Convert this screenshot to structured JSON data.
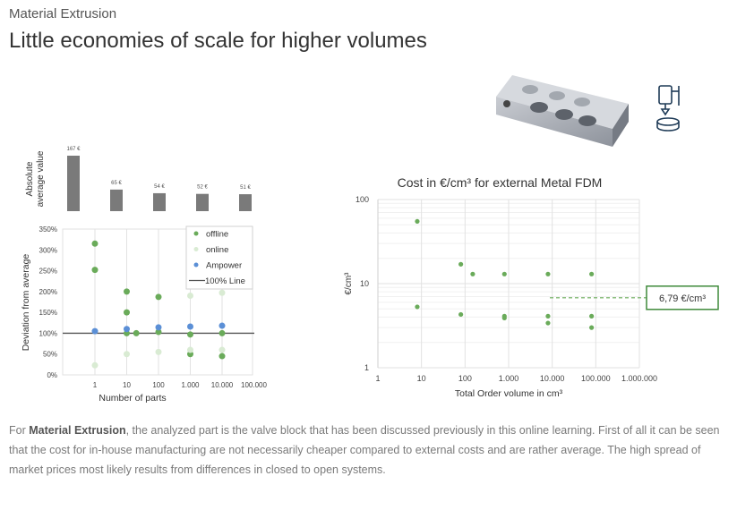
{
  "section_label": "Material Extrusion",
  "heading": "Little economies of scale for higher volumes",
  "paragraph": {
    "prefix": "For ",
    "bold": "Material Extrusion",
    "rest": ", the analyzed part is the valve block that has been discussed previously in this online learning. First of all it can be seen that the cost for in-house manufacturing are not necessarily cheaper compared to external costs and are rather average. The high spread of market prices most likely results from differences in closed to open systems."
  },
  "icons": [
    "valve-block-render-icon",
    "metal-fdm-printer-icon"
  ],
  "colors": {
    "offline": "#6aab5a",
    "online": "#d9ebd3",
    "ampower": "#5b8fd6",
    "line": "#555555",
    "bar": "#7a7a7a",
    "callout": "#3f8a3a"
  },
  "chart_data": [
    {
      "type": "bar",
      "ylabel": "Absolute average value",
      "categories": [
        "1",
        "10",
        "100",
        "1.000",
        "10.000"
      ],
      "values": [
        167,
        65,
        54,
        52,
        51
      ],
      "data_labels": [
        "167 €",
        "65 €",
        "54 €",
        "52 €",
        "51 €"
      ],
      "ylim": [
        0,
        167
      ]
    },
    {
      "type": "scatter",
      "xlabel": "Number of parts",
      "ylabel": "Deviation from average",
      "x_ticks": [
        "1",
        "10",
        "100",
        "1.000",
        "10.000",
        "100.000"
      ],
      "y_ticks": [
        "0%",
        "50%",
        "100%",
        "150%",
        "200%",
        "250%",
        "300%",
        "350%"
      ],
      "ylim": [
        0,
        350
      ],
      "x_log": true,
      "grid": "vertical",
      "legend_position": "top-right",
      "legend": [
        "offline",
        "online",
        "Ampower",
        "100% Line"
      ],
      "reference_line": 100,
      "series": [
        {
          "name": "offline",
          "points": [
            [
              1,
              315
            ],
            [
              1,
              252
            ],
            [
              10,
              200
            ],
            [
              10,
              150
            ],
            [
              10,
              100
            ],
            [
              20,
              100
            ],
            [
              100,
              187
            ],
            [
              100,
              103
            ],
            [
              1000,
              97
            ],
            [
              1000,
              50
            ],
            [
              10000,
              100
            ],
            [
              10000,
              45
            ]
          ]
        },
        {
          "name": "online",
          "points": [
            [
              1,
              23
            ],
            [
              10,
              50
            ],
            [
              100,
              55
            ],
            [
              1000,
              190
            ],
            [
              1000,
              60
            ],
            [
              10000,
              197
            ],
            [
              10000,
              60
            ]
          ]
        },
        {
          "name": "Ampower",
          "points": [
            [
              1,
              105
            ],
            [
              10,
              110
            ],
            [
              100,
              114
            ],
            [
              1000,
              116
            ],
            [
              10000,
              118
            ]
          ]
        }
      ]
    },
    {
      "type": "scatter",
      "title": "Cost in €/cm³ for external Metal FDM",
      "xlabel": "Total Order volume in cm³",
      "ylabel": "€/cm³",
      "x_ticks": [
        "1",
        "10",
        "100",
        "1.000",
        "10.000",
        "100.000",
        "1.000.000"
      ],
      "y_ticks": [
        "1",
        "10",
        "100"
      ],
      "x_log": true,
      "y_log": true,
      "xlim": [
        1,
        1000000
      ],
      "ylim": [
        1,
        100
      ],
      "grid": "vertical",
      "annotation": "6,79 €/cm³",
      "annotation_value": 6.79,
      "series": [
        {
          "points": [
            [
              8,
              55
            ],
            [
              8,
              5.3
            ],
            [
              80,
              17
            ],
            [
              80,
              4.3
            ],
            [
              150,
              13
            ],
            [
              800,
              13
            ],
            [
              800,
              4.1
            ],
            [
              800,
              3.9
            ],
            [
              8000,
              13
            ],
            [
              8000,
              4.1
            ],
            [
              8000,
              3.4
            ],
            [
              80000,
              13
            ],
            [
              80000,
              4.1
            ],
            [
              80000,
              3.0
            ]
          ]
        }
      ]
    }
  ]
}
